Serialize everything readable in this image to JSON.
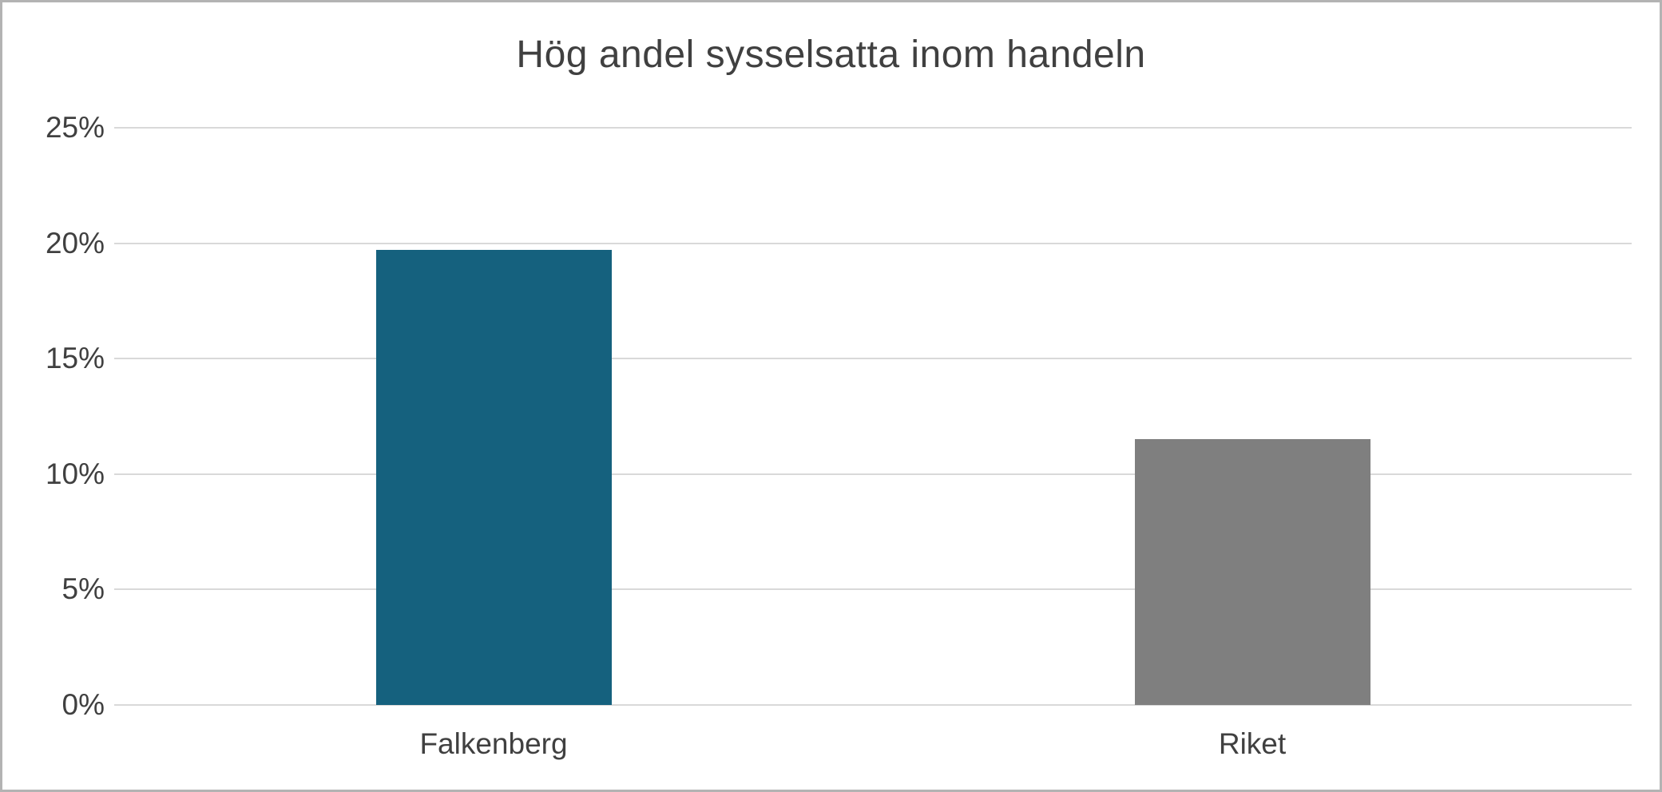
{
  "chart_data": {
    "type": "bar",
    "title": "Hög andel sysselsatta inom handeln",
    "categories": [
      "Falkenberg",
      "Riket"
    ],
    "values": [
      19.7,
      11.5
    ],
    "bar_colors": [
      "#15617e",
      "#7f7f7f"
    ],
    "xlabel": "",
    "ylabel": "",
    "ylim": [
      0,
      25
    ],
    "ytick_step": 5,
    "ytick_labels": [
      "0%",
      "5%",
      "10%",
      "15%",
      "20%",
      "25%"
    ],
    "grid": "horizontal",
    "legend": "none"
  },
  "colors": {
    "title_text": "#404040",
    "tick_text": "#404040",
    "gridline": "#d9d9d9",
    "background": "#ffffff",
    "frame_border": "#b3b3b3"
  }
}
